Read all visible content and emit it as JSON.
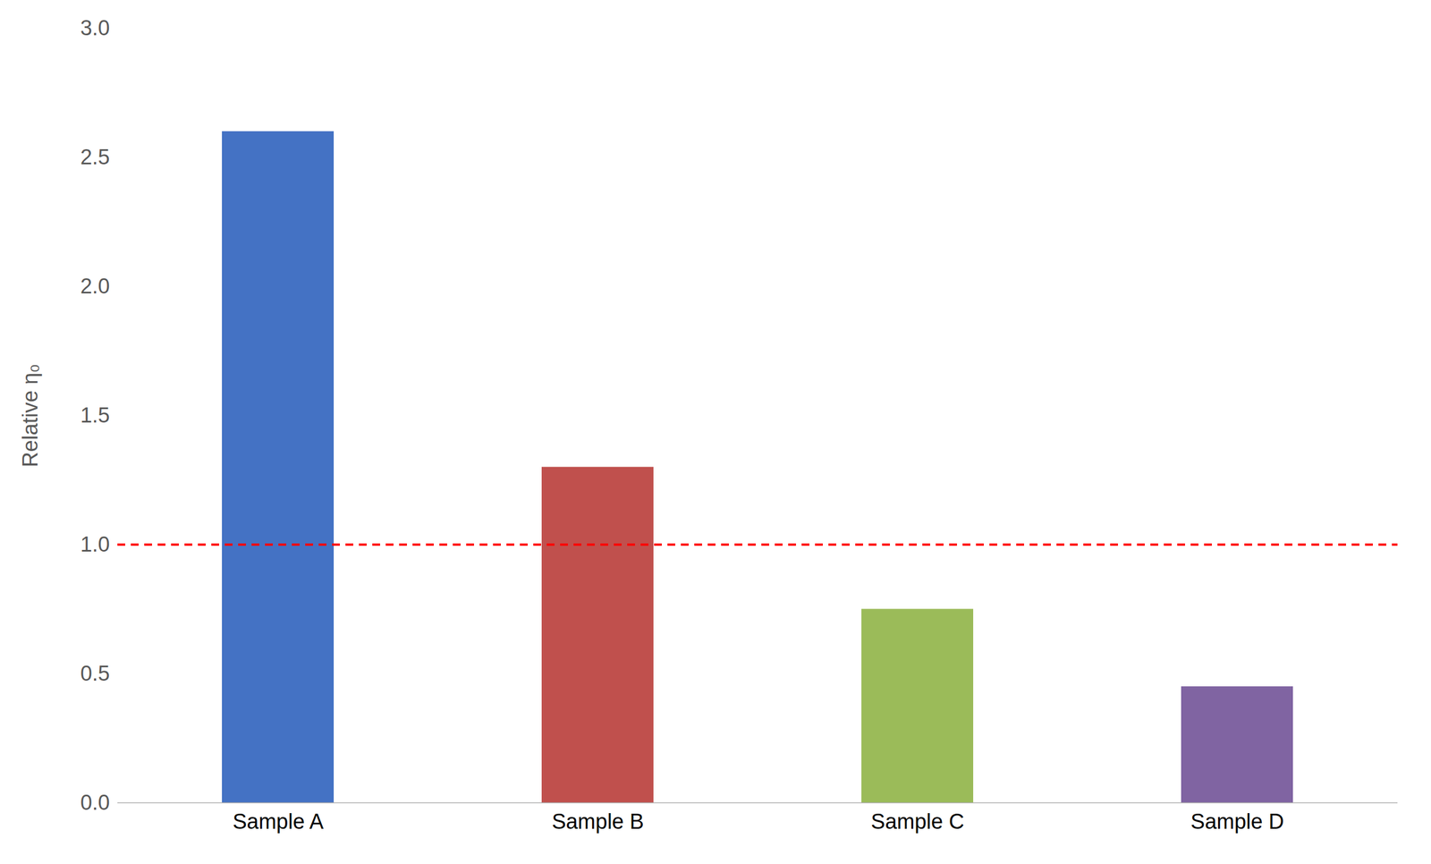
{
  "chart_data": {
    "type": "bar",
    "categories": [
      "Sample A",
      "Sample B",
      "Sample C",
      "Sample D"
    ],
    "values": [
      2.6,
      1.3,
      0.75,
      0.45
    ],
    "colors": [
      "#4472C4",
      "#C0504D",
      "#9BBB59",
      "#8064A2"
    ],
    "ylabel": "Relative η₀",
    "ylim": [
      0.0,
      3.0
    ],
    "yticks": [
      {
        "value": 0.0,
        "label": "0.0"
      },
      0.5,
      {
        "value": 1.0,
        "label": "1.0"
      },
      1.5,
      {
        "value": 2.0,
        "label": "2.0"
      },
      2.5,
      {
        "value": 3.0,
        "label": "3.0"
      }
    ],
    "hline": {
      "y": 1.0,
      "color": "#FF0000",
      "line_style": "dashed"
    },
    "grid": false
  }
}
